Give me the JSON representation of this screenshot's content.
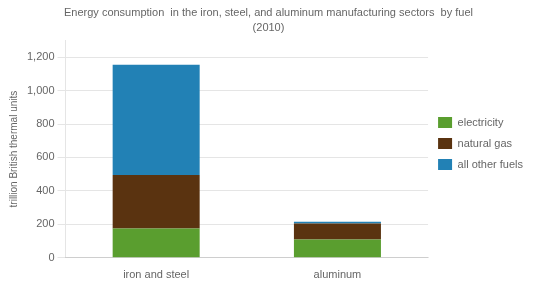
{
  "chart_data": {
    "type": "bar",
    "title": "Energy consumption  in the iron, steel, and aluminum manufacturing sectors  by fuel",
    "subtitle": "(2010)",
    "ylabel": "trillion British thermal units",
    "categories": [
      "iron and steel",
      "aluminum"
    ],
    "series": [
      {
        "name": "electricity",
        "color": "#5a9e2f",
        "values": [
          175,
          110
        ]
      },
      {
        "name": "natural gas",
        "color": "#5a3310",
        "values": [
          320,
          95
        ]
      },
      {
        "name": "all other fuels",
        "color": "#2281b5",
        "values": [
          660,
          10
        ]
      }
    ],
    "stacked": true,
    "ylim": [
      0,
      1300
    ],
    "yticks": [
      0,
      200,
      400,
      600,
      800,
      {
        "value": 1000,
        "label": "1,000"
      },
      {
        "value": 1200,
        "label": "1,200"
      }
    ],
    "grid": true,
    "legend": "right"
  }
}
